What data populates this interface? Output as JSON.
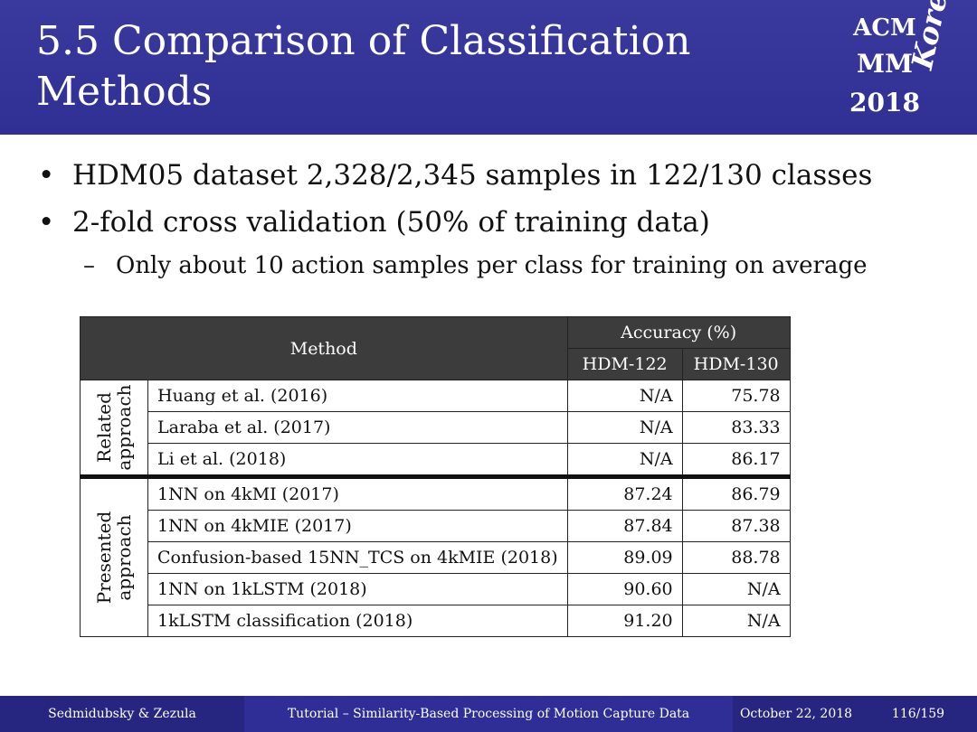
{
  "slide": {
    "title_line1": "5.5 Comparison of Classification",
    "title_line2": "Methods",
    "logo": {
      "line1": "ACM",
      "line2": "MM",
      "line3": "2018",
      "script": "Korea"
    }
  },
  "bullets": [
    "HDM05 dataset 2,328/2,345 samples in 122/130 classes",
    "2-fold cross validation (50% of training data)"
  ],
  "sub_bullet": "Only about 10 action samples per class for training on average",
  "bullet_symbol": "•",
  "sub_symbol": "–",
  "table": {
    "method_header": "Method",
    "accuracy_header": "Accuracy (%)",
    "col1": "HDM-122",
    "col2": "HDM-130",
    "group_related_l1": "Related",
    "group_related_l2": "approach",
    "group_presented_l1": "Presented",
    "group_presented_l2": "approach",
    "rows": [
      {
        "method": "Huang et al. (2016)",
        "hdm122": "N/A",
        "hdm130": "75.78"
      },
      {
        "method": "Laraba et al. (2017)",
        "hdm122": "N/A",
        "hdm130": "83.33"
      },
      {
        "method": "Li et al. (2018)",
        "hdm122": "N/A",
        "hdm130": "86.17"
      },
      {
        "method": "1NN on 4kMI (2017)",
        "hdm122": "87.24",
        "hdm130": "86.79"
      },
      {
        "method": "1NN on 4kMIE (2017)",
        "hdm122": "87.84",
        "hdm130": "87.38"
      },
      {
        "method": "Confusion-based 15NN_TCS on 4kMIE (2018)",
        "hdm122": "89.09",
        "hdm130": "88.78"
      },
      {
        "method": "1NN on 1kLSTM (2018)",
        "hdm122": "90.60",
        "hdm130": "N/A"
      },
      {
        "method": "1kLSTM classification (2018)",
        "hdm122": "91.20",
        "hdm130": "N/A"
      }
    ]
  },
  "footer": {
    "authors": "Sedmidubsky & Zezula",
    "tutorial": "Tutorial – Similarity-Based Processing of Motion Capture Data",
    "date": "October 22, 2018",
    "page": "116/159"
  },
  "colors": {
    "header_bg": "#3a3a9e",
    "footer_bg": "#2e2e96",
    "table_header_bg": "#3c3c3c"
  }
}
